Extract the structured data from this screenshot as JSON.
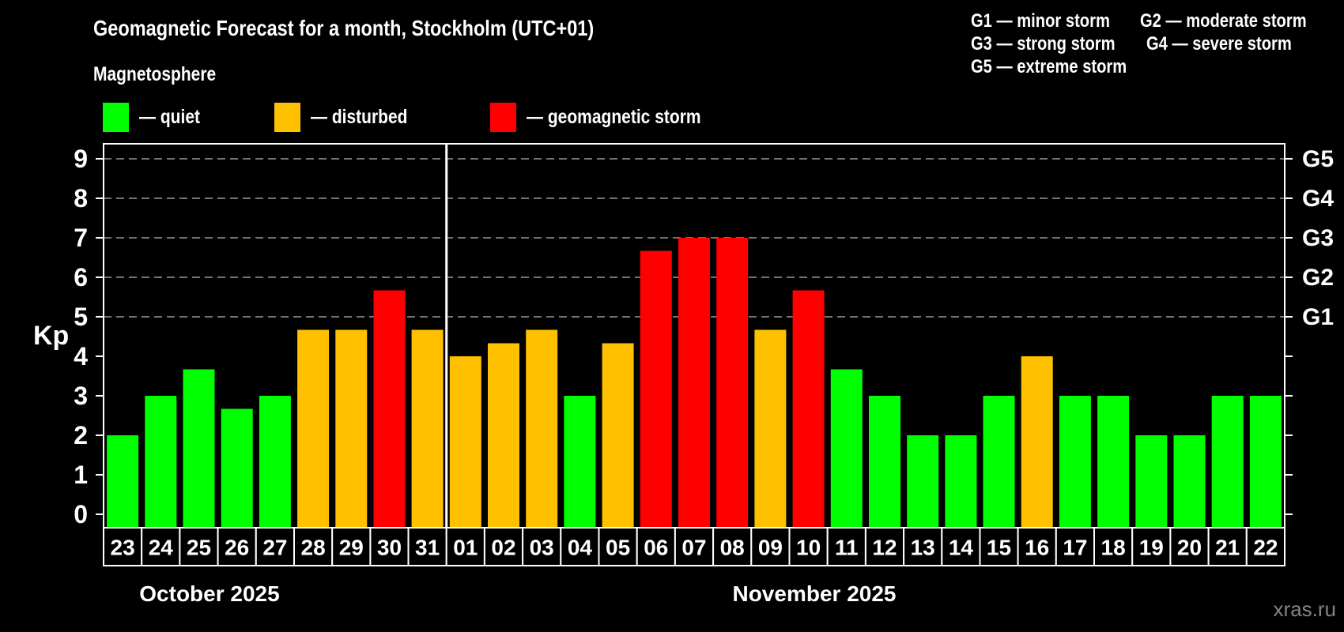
{
  "header": {
    "title": "Geomagnetic Forecast for a month, Stockholm (UTC+01)",
    "subtitle": "Magnetosphere"
  },
  "legend": {
    "items": [
      {
        "label": "— quiet",
        "status": "quiet",
        "color": "#00ff00"
      },
      {
        "label": "— disturbed",
        "status": "disturbed",
        "color": "#ffc000"
      },
      {
        "label": "— geomagnetic storm",
        "status": "storm",
        "color": "#ff0000"
      }
    ]
  },
  "g_scale": {
    "items": [
      "G1 — minor storm",
      "G2 — moderate storm",
      "G3 — strong storm",
      "G4 — severe storm",
      "G5 — extreme storm"
    ]
  },
  "watermark": "xras.ru",
  "chart_data": {
    "type": "bar",
    "title": "Geomagnetic Forecast for a month, Stockholm (UTC+01)",
    "subtitle": "Magnetosphere",
    "ylabel": "Kp",
    "ylim": [
      -0.33,
      9.38
    ],
    "yticks": [
      0,
      1,
      2,
      3,
      4,
      5,
      6,
      7,
      8,
      9
    ],
    "grid": "dashed horizontal lines only at storm levels",
    "gridlines_at_kp": [
      5,
      6,
      7,
      8,
      9
    ],
    "right_axis": [
      {
        "kp": 5,
        "label": "G1"
      },
      {
        "kp": 6,
        "label": "G2"
      },
      {
        "kp": 7,
        "label": "G3"
      },
      {
        "kp": 8,
        "label": "G4"
      },
      {
        "kp": 9,
        "label": "G5"
      }
    ],
    "status_colors": {
      "quiet": "#00ff00",
      "disturbed": "#ffc000",
      "storm": "#ff0000"
    },
    "months": [
      {
        "label": "October 2025",
        "bar_count": 9
      },
      {
        "label": "November 2025",
        "bar_count": 22
      }
    ],
    "bars": [
      {
        "date": "23",
        "kp": 2.0,
        "status": "quiet"
      },
      {
        "date": "24",
        "kp": 3.0,
        "status": "quiet"
      },
      {
        "date": "25",
        "kp": 3.67,
        "status": "quiet"
      },
      {
        "date": "26",
        "kp": 2.67,
        "status": "quiet"
      },
      {
        "date": "27",
        "kp": 3.0,
        "status": "quiet"
      },
      {
        "date": "28",
        "kp": 4.67,
        "status": "disturbed"
      },
      {
        "date": "29",
        "kp": 4.67,
        "status": "disturbed"
      },
      {
        "date": "30",
        "kp": 5.67,
        "status": "storm"
      },
      {
        "date": "31",
        "kp": 4.67,
        "status": "disturbed"
      },
      {
        "date": "01",
        "kp": 4.0,
        "status": "disturbed"
      },
      {
        "date": "02",
        "kp": 4.33,
        "status": "disturbed"
      },
      {
        "date": "03",
        "kp": 4.67,
        "status": "disturbed"
      },
      {
        "date": "04",
        "kp": 3.0,
        "status": "quiet"
      },
      {
        "date": "05",
        "kp": 4.33,
        "status": "disturbed"
      },
      {
        "date": "06",
        "kp": 6.67,
        "status": "storm"
      },
      {
        "date": "07",
        "kp": 7.0,
        "status": "storm"
      },
      {
        "date": "08",
        "kp": 7.0,
        "status": "storm"
      },
      {
        "date": "09",
        "kp": 4.67,
        "status": "disturbed"
      },
      {
        "date": "10",
        "kp": 5.67,
        "status": "storm"
      },
      {
        "date": "11",
        "kp": 3.67,
        "status": "quiet"
      },
      {
        "date": "12",
        "kp": 3.0,
        "status": "quiet"
      },
      {
        "date": "13",
        "kp": 2.0,
        "status": "quiet"
      },
      {
        "date": "14",
        "kp": 2.0,
        "status": "quiet"
      },
      {
        "date": "15",
        "kp": 3.0,
        "status": "quiet"
      },
      {
        "date": "16",
        "kp": 4.0,
        "status": "disturbed"
      },
      {
        "date": "17",
        "kp": 3.0,
        "status": "quiet"
      },
      {
        "date": "18",
        "kp": 3.0,
        "status": "quiet"
      },
      {
        "date": "19",
        "kp": 2.0,
        "status": "quiet"
      },
      {
        "date": "20",
        "kp": 2.0,
        "status": "quiet"
      },
      {
        "date": "21",
        "kp": 3.0,
        "status": "quiet"
      },
      {
        "date": "22",
        "kp": 3.0,
        "status": "quiet"
      }
    ]
  }
}
